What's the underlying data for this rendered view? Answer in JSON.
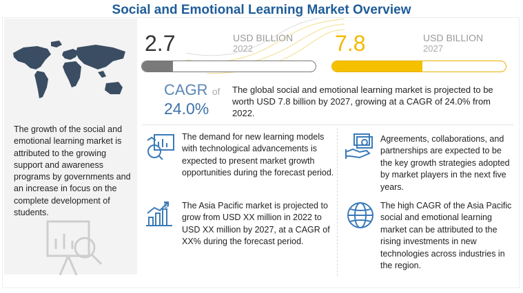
{
  "title": "Social and Emotional Learning Market Overview",
  "market": {
    "y2022": {
      "value": "2.7",
      "unit": "USD BILLION",
      "year": "2022",
      "fill_fraction": 0.18
    },
    "y2027": {
      "value": "7.8",
      "unit": "USD BILLION",
      "year": "2027",
      "fill_fraction": 0.52
    }
  },
  "cagr": {
    "label": "CAGR",
    "of": "of",
    "value": "24.0%",
    "description": "The global social and emotional learning market is projected to be worth USD 7.8 billion by 2027, growing at a CAGR of 24.0% from 2022."
  },
  "left_panel": {
    "text": "The growth of the social and emotional learning market is attributed to the growing support and awareness programs by governments and an increase in focus on the complete development of students."
  },
  "facts": [
    {
      "icon": "analytics-icon",
      "text": "The demand for new learning models with technological advancements is expected to present market growth opportunities during the forecast period."
    },
    {
      "icon": "handshake-money-icon",
      "text": "Agreements, collaborations, and partnerships are expected to be the key growth strategies adopted by market players in the next five years."
    },
    {
      "icon": "growth-chart-icon",
      "text": "The Asia Pacific market is projected to grow from USD XX million in 2022 to USD XX million by 2027, at a CAGR of XX% during the forecast period."
    },
    {
      "icon": "globe-icon",
      "text": "The high CAGR of the Asia Pacific social and emotional learning market can be attributed to the rising investments in new technologies across industries in the region."
    }
  ],
  "colors": {
    "title": "#1f5c99",
    "accent_yellow": "#f5c000",
    "bar_gray": "#7a7a7a",
    "cagr_blue": "#3f72a8"
  }
}
